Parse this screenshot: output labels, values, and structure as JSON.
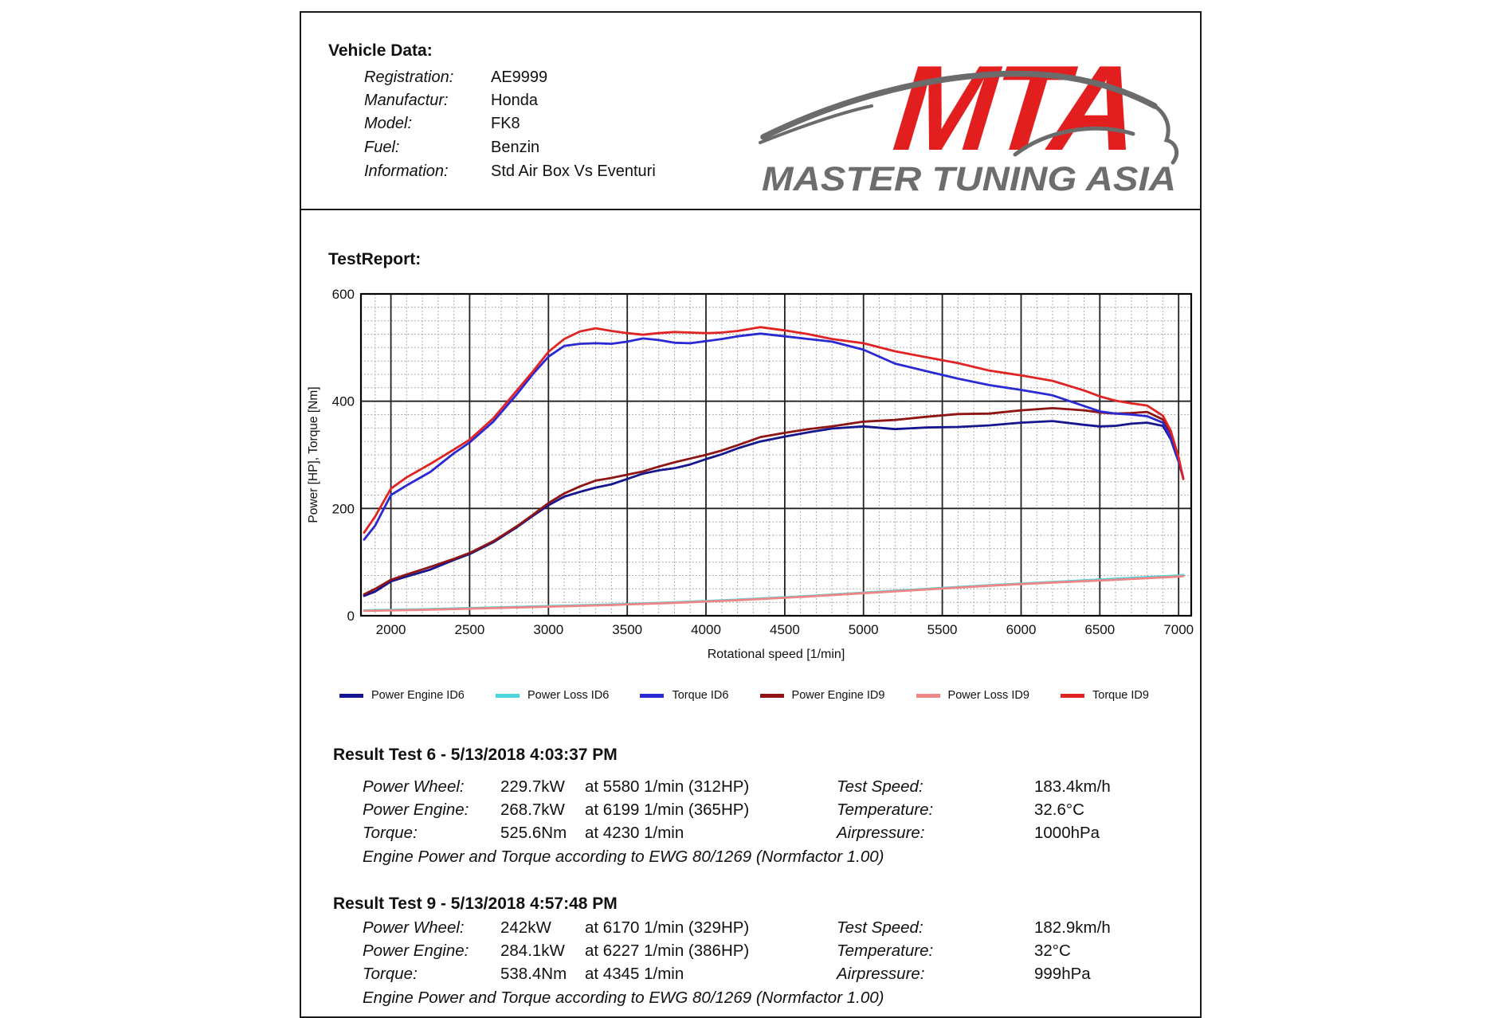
{
  "report": {
    "vehicle": {
      "title": "Vehicle Data:",
      "rows": [
        {
          "label": "Registration:",
          "value": "AE9999"
        },
        {
          "label": "Manufactur:",
          "value": "Honda"
        },
        {
          "label": "Model:",
          "value": "FK8"
        },
        {
          "label": "Fuel:",
          "value": "Benzin"
        },
        {
          "label": "Information:",
          "value": "Std Air Box Vs Eventuri"
        }
      ]
    },
    "logo": {
      "monogram": "MTA",
      "name": "MASTER TUNING ASIA",
      "red": "#e31e1f",
      "gray": "#6d6d6d"
    },
    "test_report_title": "TestReport:",
    "results": [
      {
        "heading": "Result Test 6 - 5/13/2018 4:03:37 PM",
        "rows": [
          {
            "label": "Power Wheel:",
            "value": "229.7kW",
            "at": "at 5580 1/min (312HP)",
            "label2": "Test Speed:",
            "value2": "183.4km/h"
          },
          {
            "label": "Power Engine:",
            "value": "268.7kW",
            "at": "at 6199 1/min (365HP)",
            "label2": "Temperature:",
            "value2": "32.6°C"
          },
          {
            "label": "Torque:",
            "value": "525.6Nm",
            "at": "at 4230 1/min",
            "label2": "Airpressure:",
            "value2": "1000hPa"
          }
        ],
        "note": "Engine Power and Torque according to EWG 80/1269 (Normfactor 1.00)"
      },
      {
        "heading": "Result Test 9 - 5/13/2018 4:57:48 PM",
        "rows": [
          {
            "label": "Power Wheel:",
            "value": "242kW",
            "at": "at 6170 1/min (329HP)",
            "label2": "Test Speed:",
            "value2": "182.9km/h"
          },
          {
            "label": "Power Engine:",
            "value": "284.1kW",
            "at": "at 6227 1/min (386HP)",
            "label2": "Temperature:",
            "value2": "32°C"
          },
          {
            "label": "Torque:",
            "value": "538.4Nm",
            "at": "at 4345 1/min",
            "label2": "Airpressure:",
            "value2": "999hPa"
          }
        ],
        "note": "Engine Power and Torque according to EWG 80/1269 (Normfactor 1.00)"
      }
    ]
  },
  "chart_data": {
    "type": "line",
    "title": "",
    "xlabel": "Rotational speed [1/min]",
    "ylabel": "Power [HP], Torque [Nm]",
    "xlim": [
      1810,
      7080
    ],
    "ylim": [
      0,
      600
    ],
    "x_ticks": [
      2000,
      2500,
      3000,
      3500,
      4000,
      4500,
      5000,
      5500,
      6000,
      6500,
      7000
    ],
    "y_ticks": [
      0,
      200,
      400,
      600
    ],
    "minor_x_step": 100,
    "minor_y_step": 25,
    "grid": "on",
    "legend_position": "bottom",
    "draw_order": [
      1,
      4,
      0,
      3,
      2,
      5
    ],
    "series": [
      {
        "name": "Power Engine ID6",
        "color": "#16168f",
        "x": [
          1830,
          1900,
          2000,
          2100,
          2250,
          2400,
          2500,
          2650,
          2800,
          2900,
          3000,
          3100,
          3200,
          3300,
          3400,
          3500,
          3600,
          3700,
          3800,
          3900,
          4000,
          4100,
          4200,
          4345,
          4500,
          4650,
          4800,
          5000,
          5200,
          5400,
          5600,
          5800,
          6000,
          6200,
          6400,
          6500,
          6600,
          6700,
          6800,
          6900,
          6950,
          7000,
          7030
        ],
        "y": [
          37,
          45,
          64,
          73,
          86,
          104,
          115,
          137,
          165,
          186,
          206,
          222,
          231,
          239,
          245,
          255,
          265,
          271,
          275,
          282,
          292,
          301,
          312,
          325,
          334,
          342,
          349,
          353,
          348,
          351,
          352,
          355,
          360,
          363,
          356,
          353,
          354,
          358,
          360,
          354,
          329,
          287,
          256
        ]
      },
      {
        "name": "Power Loss ID6",
        "color": "#4cd6dc",
        "x": [
          1830,
          2200,
          2600,
          3000,
          3400,
          3800,
          4200,
          4600,
          5000,
          5400,
          5800,
          6200,
          6600,
          7000,
          7030
        ],
        "y": [
          10,
          12,
          15,
          18,
          21,
          25,
          30,
          36,
          43,
          50,
          57,
          63,
          69,
          75,
          76
        ]
      },
      {
        "name": "Torque ID6",
        "color": "#2a2ad4",
        "x": [
          1830,
          1900,
          2000,
          2100,
          2250,
          2400,
          2500,
          2650,
          2800,
          2900,
          3000,
          3100,
          3200,
          3300,
          3400,
          3500,
          3600,
          3700,
          3800,
          3900,
          4000,
          4100,
          4200,
          4345,
          4500,
          4650,
          4800,
          5000,
          5200,
          5400,
          5600,
          5800,
          6000,
          6200,
          6400,
          6500,
          6600,
          6700,
          6800,
          6900,
          6950,
          7000,
          7030
        ],
        "y": [
          142,
          168,
          225,
          243,
          268,
          303,
          323,
          362,
          413,
          450,
          483,
          503,
          507,
          508,
          507,
          511,
          517,
          514,
          509,
          508,
          512,
          516,
          521,
          526,
          521,
          516,
          511,
          496,
          470,
          456,
          442,
          430,
          421,
          411,
          391,
          381,
          377,
          375,
          372,
          360,
          332,
          288,
          256
        ]
      },
      {
        "name": "Power Engine ID9",
        "color": "#8f1414",
        "x": [
          1830,
          1900,
          2000,
          2100,
          2250,
          2400,
          2500,
          2650,
          2800,
          2900,
          3000,
          3100,
          3200,
          3300,
          3400,
          3500,
          3600,
          3700,
          3800,
          3900,
          4000,
          4100,
          4200,
          4345,
          4500,
          4650,
          4800,
          5000,
          5200,
          5400,
          5600,
          5800,
          6000,
          6200,
          6400,
          6500,
          6600,
          6700,
          6800,
          6900,
          6950,
          7000,
          7030
        ],
        "y": [
          40,
          50,
          67,
          77,
          91,
          106,
          117,
          139,
          167,
          188,
          210,
          228,
          241,
          252,
          257,
          263,
          269,
          278,
          286,
          293,
          300,
          308,
          318,
          333,
          341,
          348,
          353,
          362,
          365,
          371,
          376,
          377,
          383,
          387,
          383,
          379,
          377,
          378,
          380,
          366,
          341,
          294,
          255
        ]
      },
      {
        "name": "Power Loss ID9",
        "color": "#ef8585",
        "x": [
          1830,
          2200,
          2600,
          3000,
          3400,
          3800,
          4200,
          4600,
          5000,
          5400,
          5800,
          6200,
          6600,
          7000,
          7030
        ],
        "y": [
          9,
          11,
          14,
          17,
          20,
          24,
          29,
          35,
          42,
          49,
          56,
          62,
          67,
          73,
          74
        ]
      },
      {
        "name": "Torque ID9",
        "color": "#e02323",
        "x": [
          1830,
          1900,
          2000,
          2100,
          2250,
          2400,
          2500,
          2650,
          2800,
          2900,
          3000,
          3100,
          3200,
          3300,
          3400,
          3500,
          3600,
          3700,
          3800,
          3900,
          4000,
          4100,
          4200,
          4345,
          4500,
          4650,
          4800,
          5000,
          5200,
          5400,
          5600,
          5800,
          6000,
          6200,
          6400,
          6500,
          6600,
          6700,
          6800,
          6900,
          6950,
          7000,
          7030
        ],
        "y": [
          155,
          185,
          237,
          258,
          283,
          310,
          328,
          368,
          420,
          455,
          492,
          516,
          530,
          536,
          531,
          527,
          524,
          527,
          529,
          528,
          527,
          528,
          531,
          538,
          532,
          525,
          516,
          508,
          493,
          482,
          471,
          457,
          448,
          438,
          420,
          409,
          401,
          396,
          392,
          373,
          345,
          295,
          255
        ]
      }
    ]
  }
}
